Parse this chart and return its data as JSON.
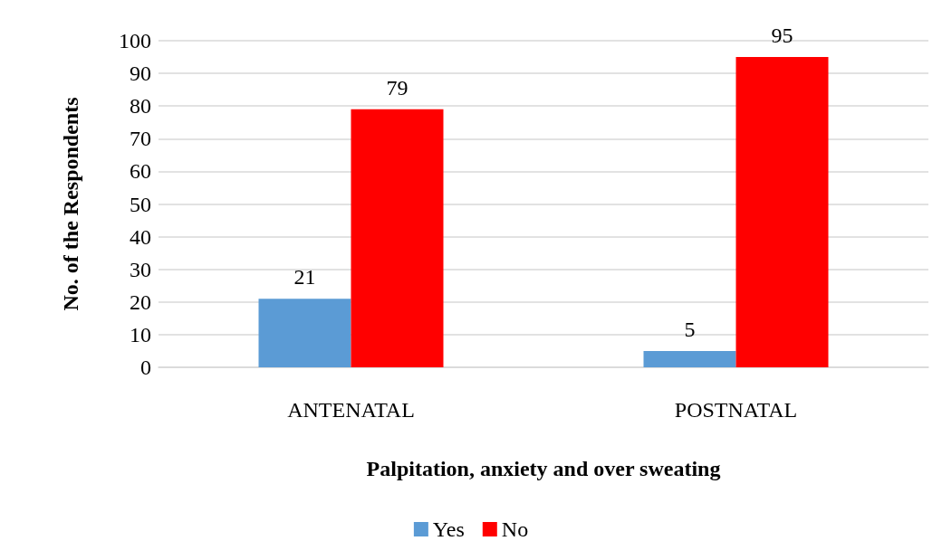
{
  "chart_data": {
    "type": "bar",
    "xlabel": "Palpitation, anxiety and over sweating",
    "ylabel": "No. of the Respondents",
    "categories": [
      "ANTENATAL",
      "POSTNATAL"
    ],
    "series": [
      {
        "name": "Yes",
        "color": "#5b9bd5",
        "values": [
          21,
          5
        ]
      },
      {
        "name": "No",
        "color": "#ff0000",
        "values": [
          79,
          95
        ]
      }
    ],
    "ylim": [
      0,
      100
    ],
    "yticks": [
      0,
      10,
      20,
      30,
      40,
      50,
      60,
      70,
      80,
      90,
      100
    ],
    "grid": "y",
    "legend": "bottom",
    "data_labels": true
  }
}
